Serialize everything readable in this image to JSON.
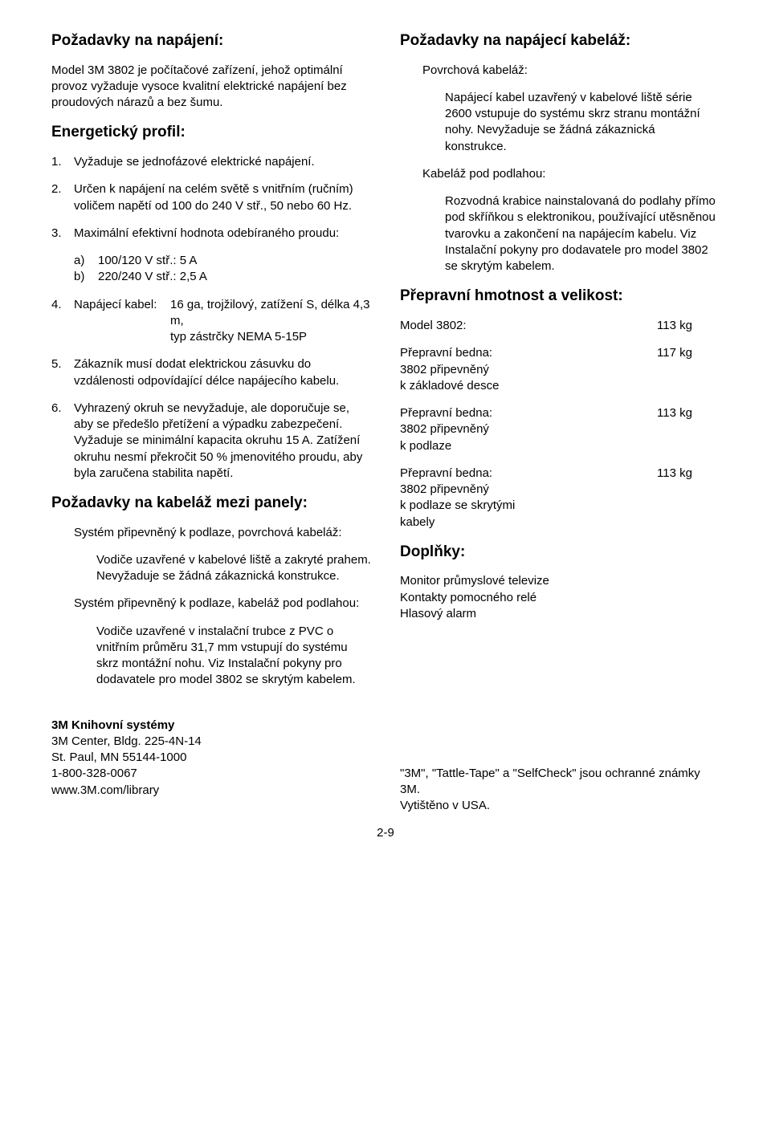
{
  "left": {
    "h_power": "Požadavky na napájení:",
    "p_power": "Model 3M 3802 je počítačové zařízení, jehož optimální provoz vyžaduje vysoce kvalitní elektrické napájení bez proudových nárazů a bez šumu.",
    "h_profile": "Energetický profil:",
    "items": {
      "1": "Vyžaduje se jednofázové elektrické napájení.",
      "2": "Určen k napájení na celém světě s vnitřním (ručním) voličem napětí od 100 do 240 V stř., 50 nebo 60 Hz.",
      "3": "Maximální efektivní hodnota odebíraného proudu:",
      "3a": "100/120 V stř.: 5 A",
      "3b": "220/240 V stř.: 2,5 A",
      "4_label": "Napájecí kabel:",
      "4_val": "16 ga, trojžilový, zatížení S, délka 4,3 m,\ntyp zástrčky NEMA 5-15P",
      "5": "Zákazník musí dodat elektrickou zásuvku do vzdálenosti odpovídající délce napájecího kabelu.",
      "6": "Vyhrazený okruh se nevyžaduje, ale doporučuje se, aby se předešlo přetížení a výpadku zabezpečení. Vyžaduje se minimální kapacita okruhu 15 A. Zatížení okruhu nesmí překročit 50 % jmenovitého proudu, aby byla zaručena stabilita napětí."
    },
    "h_panel": "Požadavky na kabeláž mezi panely:",
    "p_floor_surface": "Systém připevněný k podlaze, povrchová kabeláž:",
    "p_floor_surface_body": "Vodiče uzavřené v kabelové liště a zakryté prahem. Nevyžaduje se žádná zákaznická konstrukce.",
    "p_floor_under": "Systém připevněný k podlaze, kabeláž pod podlahou:",
    "p_floor_under_body": "Vodiče uzavřené v instalační trubce z PVC o vnitřním průměru 31,7 mm vstupují do systému skrz montážní nohu. Viz Instalační pokyny pro dodavatele pro model 3802 se skrytým kabelem."
  },
  "right": {
    "h_supply": "Požadavky na napájecí kabeláž:",
    "p_surface": "Povrchová kabeláž:",
    "p_surface_body": "Napájecí kabel uzavřený v kabelové liště série 2600 vstupuje do systému skrz stranu montážní nohy. Nevyžaduje se žádná zákaznická konstrukce.",
    "p_under": "Kabeláž pod podlahou:",
    "p_under_body": "Rozvodná krabice nainstalovaná do podlahy přímo pod skříňkou s elektronikou, používající utěsněnou tvarovku a zakončení na napájecím kabelu. Viz Instalační pokyny pro dodavatele pro model 3802 se skrytým kabelem.",
    "h_weight": "Přepravní hmotnost a velikost:",
    "rows": [
      {
        "l": "Model 3802:",
        "r": "113 kg"
      },
      {
        "l": "Přepravní bedna:\n3802 připevněný\nk základové desce",
        "r": "117 kg"
      },
      {
        "l": "Přepravní bedna:\n3802 připevněný\nk podlaze",
        "r": "113 kg"
      },
      {
        "l": "Přepravní bedna:\n3802 připevněný\nk podlaze se skrytými\nkabely",
        "r": "113 kg"
      }
    ],
    "h_acc": "Doplňky:",
    "p_acc": "Monitor průmyslové televize\nKontakty pomocného relé\nHlasový alarm"
  },
  "footer": {
    "left": "3M Knihovní systémy\n3M Center, Bldg. 225-4N-14\nSt. Paul, MN 55144-1000\n1-800-328-0067\nwww.3M.com/library",
    "right": "\"3M\", \"Tattle-Tape\" a \"SelfCheck\" jsou ochranné známky 3M.\nVytištěno v USA.",
    "page": "2-9"
  }
}
